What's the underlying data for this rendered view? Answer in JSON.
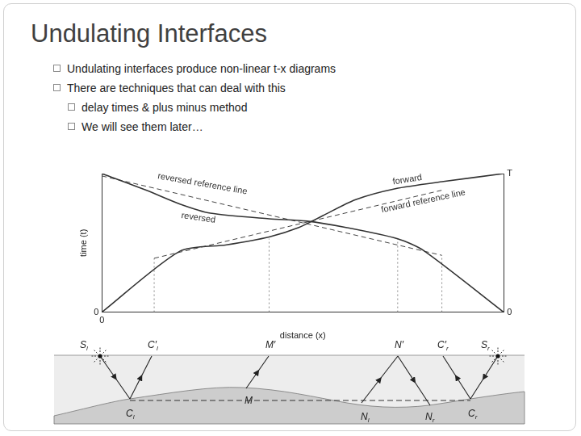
{
  "title": "Undulating Interfaces",
  "bullets": [
    {
      "text": "Undulating interfaces produce non-linear t-x diagrams",
      "level": 1
    },
    {
      "text": "There are techniques that can deal with this",
      "level": 1
    },
    {
      "text": "delay times & plus minus method",
      "level": 2
    },
    {
      "text": "We will see them later…",
      "level": 2
    }
  ],
  "chart_data": {
    "type": "line",
    "x_label": "distance (x)",
    "y_label": "time (t)",
    "xlim": [
      0,
      100
    ],
    "xticks": [
      0
    ],
    "ylim": [
      0,
      100
    ],
    "yticks": [
      0
    ],
    "y2lim": [
      0,
      100
    ],
    "y2ticks": [
      0,
      {
        "value": 100,
        "label": "T"
      }
    ],
    "grid": false,
    "series": [
      {
        "name": "forward",
        "color": "#333333",
        "line_style": "solid",
        "x": [
          0,
          19.4,
          31,
          41.6,
          49,
          55,
          63,
          73,
          85,
          100
        ],
        "values": [
          0,
          44,
          48.6,
          54.3,
          61.1,
          69.7,
          81.1,
          89.1,
          94.3,
          100
        ]
      },
      {
        "name": "reversed",
        "color": "#333333",
        "line_style": "solid",
        "x": [
          0,
          11,
          19.4,
          27,
          41.6,
          51,
          61,
          73.6,
          80,
          100
        ],
        "values": [
          100,
          88,
          78,
          71.4,
          67.4,
          65.7,
          61,
          53,
          44.6,
          0
        ]
      },
      {
        "name": "forward reference line",
        "color": "#444444",
        "line_style": "dashed",
        "x": [
          13,
          84.6
        ],
        "values": [
          38.9,
          88
        ]
      },
      {
        "name": "reversed reference line",
        "color": "#444444",
        "line_style": "dashed",
        "x": [
          0,
          84.6
        ],
        "values": [
          98.3,
          41
        ]
      },
      {
        "color": "#888888",
        "line_style": "dotted",
        "x": [
          13,
          13
        ],
        "values": [
          0,
          38.9
        ]
      },
      {
        "color": "#888888",
        "line_style": "dotted",
        "x": [
          41.6,
          41.6
        ],
        "values": [
          0,
          53
        ]
      },
      {
        "color": "#888888",
        "line_style": "dotted",
        "x": [
          73.6,
          73.6
        ],
        "values": [
          0,
          53
        ]
      },
      {
        "color": "#888888",
        "line_style": "dotted",
        "x": [
          84.6,
          84.6
        ],
        "values": [
          0,
          41
        ]
      }
    ]
  },
  "cross_section": {
    "top_labels": [
      {
        "text": "S",
        "sub": "l"
      },
      {
        "text": "C′",
        "sub": "l"
      },
      {
        "text": "M′"
      },
      {
        "text": "N′"
      },
      {
        "text": "C′",
        "sub": "r"
      },
      {
        "text": "S",
        "sub": "r"
      }
    ],
    "bottom_labels": [
      {
        "text": "C",
        "sub": "l"
      },
      {
        "text": "M"
      },
      {
        "text": "N",
        "sub": "l"
      },
      {
        "text": "N",
        "sub": "r"
      },
      {
        "text": "C",
        "sub": "r"
      }
    ]
  }
}
